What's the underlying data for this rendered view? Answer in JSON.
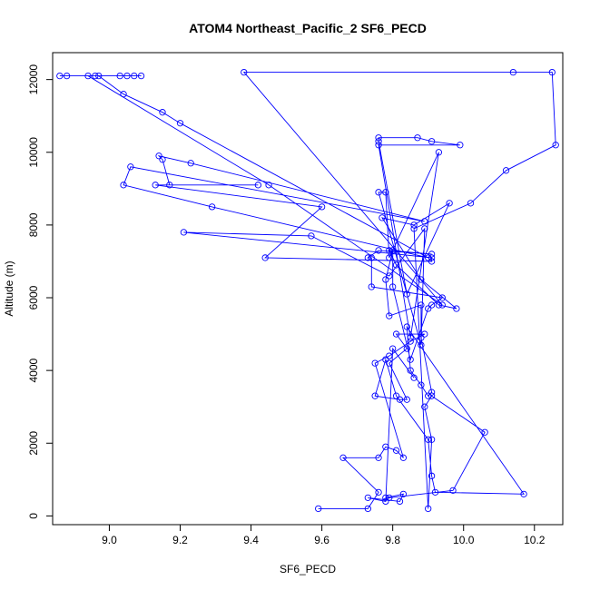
{
  "chart_data": {
    "type": "line",
    "title": "ATOM4 Northeast_Pacific_2 SF6_PECD",
    "xlabel": "SF6_PECD",
    "ylabel": "Altitude (m)",
    "xlim": [
      8.84,
      10.28
    ],
    "ylim": [
      -240,
      12740
    ],
    "x_ticks": [
      9.0,
      9.2,
      9.4,
      9.6,
      9.8,
      10.0,
      10.2
    ],
    "y_ticks": [
      0,
      2000,
      4000,
      6000,
      8000,
      10000,
      12000
    ],
    "x_tick_labels": [
      "9.0",
      "9.2",
      "9.4",
      "9.6",
      "9.8",
      "10.0",
      "10.2"
    ],
    "y_tick_labels": [
      "0",
      "2000",
      "4000",
      "6000",
      "8000",
      "10000",
      "12000"
    ],
    "grid": false,
    "series": [
      {
        "color": "#0000ff",
        "marker": "open-circle",
        "points": [
          [
            9.59,
            200
          ],
          [
            9.73,
            200
          ],
          [
            9.76,
            650
          ],
          [
            9.66,
            1600
          ],
          [
            9.76,
            1600
          ],
          [
            9.78,
            1900
          ],
          [
            9.81,
            1800
          ],
          [
            9.83,
            1600
          ],
          [
            9.75,
            4200
          ],
          [
            9.79,
            4400
          ],
          [
            9.85,
            4800
          ],
          [
            9.89,
            5000
          ],
          [
            9.81,
            5000
          ],
          [
            9.84,
            4600
          ],
          [
            9.79,
            4200
          ],
          [
            9.84,
            3200
          ],
          [
            9.82,
            3200
          ],
          [
            9.75,
            3300
          ],
          [
            9.78,
            4300
          ],
          [
            9.81,
            3300
          ],
          [
            9.9,
            2100
          ],
          [
            9.91,
            1100
          ],
          [
            9.92,
            650
          ],
          [
            10.17,
            600
          ],
          [
            9.84,
            5200
          ],
          [
            9.85,
            4000
          ],
          [
            9.88,
            3600
          ],
          [
            9.9,
            3300
          ],
          [
            9.91,
            3400
          ],
          [
            9.88,
            4900
          ],
          [
            9.88,
            5800
          ],
          [
            9.79,
            5500
          ],
          [
            9.78,
            6500
          ],
          [
            9.8,
            7300
          ],
          [
            9.8,
            6300
          ],
          [
            9.85,
            4300
          ],
          [
            9.9,
            5700
          ],
          [
            9.91,
            5800
          ],
          [
            9.94,
            6000
          ],
          [
            9.74,
            6300
          ],
          [
            9.74,
            7100
          ],
          [
            9.73,
            7100
          ],
          [
            9.76,
            7300
          ],
          [
            9.91,
            7200
          ],
          [
            9.79,
            7300
          ],
          [
            9.81,
            6900
          ],
          [
            9.93,
            5800
          ],
          [
            9.98,
            5700
          ],
          [
            9.88,
            6500
          ],
          [
            9.77,
            8200
          ],
          [
            9.86,
            8000
          ],
          [
            9.96,
            8600
          ],
          [
            9.84,
            6100
          ],
          [
            9.76,
            10300
          ],
          [
            9.76,
            10400
          ],
          [
            9.87,
            10400
          ],
          [
            9.91,
            10300
          ],
          [
            9.99,
            10200
          ],
          [
            9.76,
            10200
          ],
          [
            9.85,
            4900
          ],
          [
            9.93,
            10000
          ],
          [
            9.79,
            7100
          ],
          [
            9.78,
            8900
          ],
          [
            9.76,
            8900
          ],
          [
            9.88,
            4700
          ],
          [
            9.89,
            7900
          ],
          [
            9.79,
            6600
          ],
          [
            9.57,
            7700
          ],
          [
            9.21,
            7800
          ],
          [
            9.91,
            7100
          ],
          [
            9.91,
            7000
          ],
          [
            9.44,
            7100
          ],
          [
            9.6,
            8500
          ],
          [
            9.13,
            9100
          ],
          [
            9.42,
            9100
          ],
          [
            9.17,
            9100
          ],
          [
            9.15,
            9800
          ],
          [
            9.14,
            9900
          ],
          [
            9.23,
            9700
          ],
          [
            9.89,
            8100
          ],
          [
            9.06,
            9600
          ],
          [
            9.04,
            9100
          ],
          [
            9.29,
            8500
          ],
          [
            9.9,
            7100
          ],
          [
            9.2,
            10800
          ],
          [
            9.15,
            11100
          ],
          [
            9.04,
            11600
          ],
          [
            8.97,
            12100
          ],
          [
            8.86,
            12100
          ],
          [
            9.09,
            12100
          ],
          [
            9.05,
            12100
          ],
          [
            9.03,
            12100
          ],
          [
            9.07,
            12100
          ],
          [
            8.96,
            12100
          ],
          [
            8.88,
            12100
          ],
          [
            8.94,
            12100
          ],
          [
            9.45,
            9100
          ],
          [
            9.94,
            5800
          ],
          [
            9.38,
            12200
          ],
          [
            10.14,
            12200
          ],
          [
            10.25,
            12200
          ],
          [
            10.26,
            10200
          ],
          [
            10.12,
            9500
          ],
          [
            10.02,
            8600
          ],
          [
            9.86,
            7900
          ],
          [
            9.9,
            200
          ],
          [
            9.91,
            2100
          ],
          [
            9.89,
            3000
          ],
          [
            9.91,
            3300
          ],
          [
            10.06,
            2300
          ],
          [
            9.97,
            700
          ],
          [
            9.79,
            500
          ],
          [
            9.78,
            500
          ],
          [
            9.83,
            600
          ],
          [
            9.82,
            400
          ],
          [
            9.73,
            500
          ],
          [
            9.78,
            400
          ],
          [
            9.8,
            4600
          ],
          [
            9.86,
            3800
          ]
        ]
      }
    ]
  }
}
